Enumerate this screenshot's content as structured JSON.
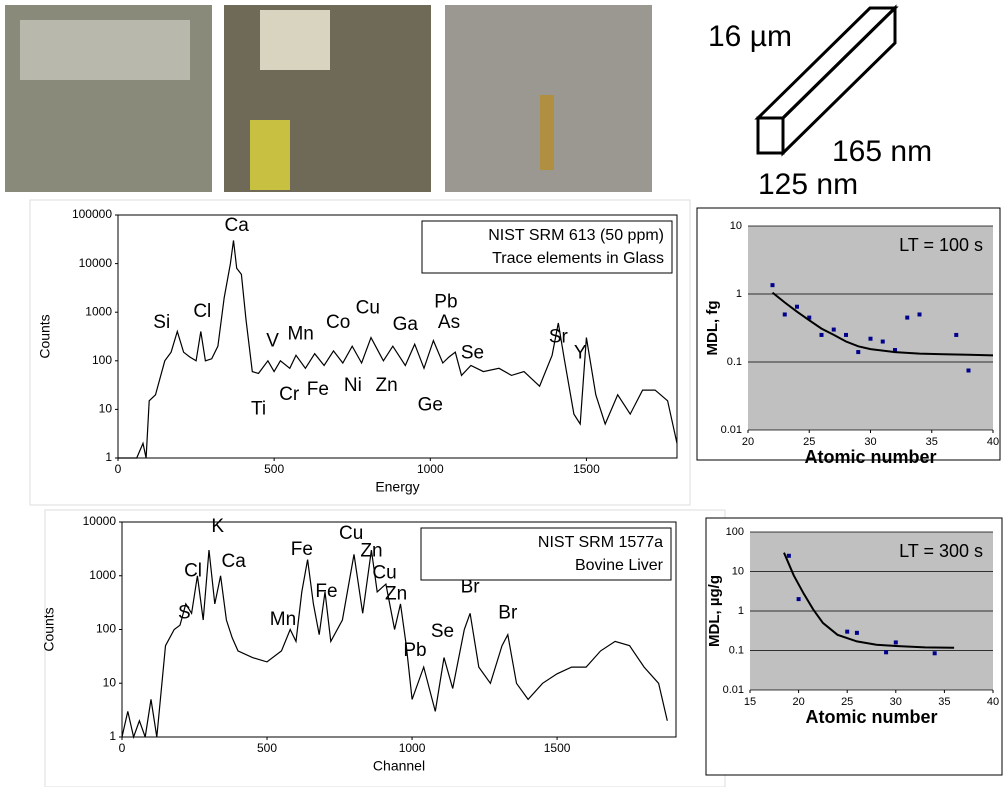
{
  "diagram": {
    "labels": [
      "16 µm",
      "165 nm",
      "125 nm"
    ]
  },
  "chart_data": [
    {
      "type": "line",
      "x_label": "Energy",
      "y_label": "Counts",
      "log_y": true,
      "notes": [
        "NIST SRM 613 (50 ppm)",
        "Trace elements in Glass"
      ],
      "xlim": [
        0,
        1790
      ],
      "xticks": [
        0,
        500,
        1000,
        1500
      ],
      "ylim": [
        1,
        100000
      ],
      "yticks": [
        1,
        10,
        100,
        1000,
        10000,
        100000
      ],
      "series": [
        {
          "color": "#000000",
          "x": [
            0,
            60,
            80,
            90,
            100,
            120,
            150,
            170,
            190,
            210,
            230,
            250,
            265,
            280,
            300,
            320,
            340,
            360,
            370,
            380,
            395,
            410,
            430,
            450,
            480,
            500,
            520,
            550,
            570,
            600,
            630,
            660,
            690,
            720,
            750,
            780,
            810,
            850,
            880,
            920,
            950,
            980,
            1010,
            1040,
            1060,
            1080,
            1100,
            1130,
            1170,
            1220,
            1260,
            1300,
            1350,
            1390,
            1410,
            1430,
            1460,
            1480,
            1500,
            1530,
            1560,
            1600,
            1640,
            1680,
            1720,
            1760,
            1790
          ],
          "values": [
            1,
            1,
            2,
            1,
            15,
            20,
            100,
            150,
            400,
            150,
            120,
            100,
            400,
            100,
            110,
            200,
            2000,
            10000,
            30000,
            8000,
            6000,
            700,
            60,
            55,
            100,
            60,
            100,
            70,
            130,
            70,
            140,
            80,
            160,
            90,
            200,
            90,
            300,
            100,
            200,
            80,
            220,
            70,
            260,
            90,
            120,
            150,
            50,
            80,
            60,
            70,
            50,
            60,
            30,
            130,
            600,
            100,
            8,
            5,
            300,
            20,
            5,
            20,
            8,
            25,
            25,
            15,
            2
          ]
        }
      ],
      "annotations": [
        {
          "text": "Ca",
          "x": 380,
          "y": 60000
        },
        {
          "text": "Si",
          "x": 140,
          "y": 600
        },
        {
          "text": "Cl",
          "x": 270,
          "y": 1000
        },
        {
          "text": "V",
          "x": 495,
          "y": 250
        },
        {
          "text": "Mn",
          "x": 585,
          "y": 350
        },
        {
          "text": "Co",
          "x": 705,
          "y": 600
        },
        {
          "text": "Cu",
          "x": 800,
          "y": 1200
        },
        {
          "text": "Ga",
          "x": 920,
          "y": 550
        },
        {
          "text": "Pb",
          "x": 1050,
          "y": 1600
        },
        {
          "text": "As",
          "x": 1060,
          "y": 600
        },
        {
          "text": "Se",
          "x": 1135,
          "y": 140
        },
        {
          "text": "Sr",
          "x": 1410,
          "y": 300
        },
        {
          "text": "Y",
          "x": 1480,
          "y": 140
        },
        {
          "text": "Ti",
          "x": 450,
          "y": 10
        },
        {
          "text": "Cr",
          "x": 548,
          "y": 20
        },
        {
          "text": "Fe",
          "x": 640,
          "y": 25
        },
        {
          "text": "Ni",
          "x": 752,
          "y": 30
        },
        {
          "text": "Zn",
          "x": 860,
          "y": 30
        },
        {
          "text": "Ge",
          "x": 1000,
          "y": 12
        }
      ]
    },
    {
      "type": "scatter",
      "x_label": "Atomic number",
      "y_label": "MDL, fg",
      "log_y": true,
      "grid": true,
      "notes": [
        "LT = 100 s"
      ],
      "xlim": [
        20,
        40
      ],
      "xticks": [
        20,
        25,
        30,
        35,
        40
      ],
      "ylim": [
        0.01,
        10
      ],
      "yticks": [
        0.01,
        0.1,
        1,
        10
      ],
      "series": [
        {
          "color": "#00008b",
          "marker": "point",
          "x": [
            22,
            23,
            24,
            25,
            26,
            27,
            28,
            29,
            30,
            31,
            32,
            33,
            34,
            37,
            38
          ],
          "values": [
            1.35,
            0.5,
            0.65,
            0.45,
            0.25,
            0.3,
            0.25,
            0.14,
            0.22,
            0.2,
            0.15,
            0.45,
            0.5,
            0.25,
            0.075
          ]
        },
        {
          "color": "#000000",
          "marker": "line",
          "x": [
            22,
            23,
            24,
            25,
            26,
            27,
            28,
            29,
            30,
            32,
            34,
            36,
            38,
            40
          ],
          "values": [
            1.05,
            0.75,
            0.55,
            0.41,
            0.31,
            0.25,
            0.2,
            0.17,
            0.155,
            0.14,
            0.133,
            0.13,
            0.128,
            0.125
          ]
        }
      ]
    },
    {
      "type": "line",
      "x_label": "Channel",
      "y_label": "Counts",
      "log_y": true,
      "notes": [
        "NIST SRM 1577a",
        "Bovine Liver"
      ],
      "xlim": [
        0,
        1910
      ],
      "xticks": [
        0,
        500,
        1000,
        1500
      ],
      "ylim": [
        1,
        10000
      ],
      "yticks": [
        1,
        10,
        100,
        1000,
        10000
      ],
      "series": [
        {
          "color": "#000000",
          "x": [
            0,
            20,
            40,
            60,
            80,
            100,
            120,
            150,
            180,
            200,
            220,
            240,
            260,
            280,
            300,
            320,
            340,
            360,
            380,
            400,
            450,
            500,
            550,
            580,
            600,
            620,
            640,
            660,
            680,
            700,
            720,
            760,
            800,
            830,
            860,
            880,
            910,
            940,
            960,
            980,
            1000,
            1040,
            1080,
            1110,
            1140,
            1180,
            1200,
            1230,
            1270,
            1310,
            1330,
            1360,
            1400,
            1450,
            1500,
            1550,
            1600,
            1650,
            1700,
            1750,
            1800,
            1850,
            1880
          ],
          "values": [
            1,
            3,
            1,
            2,
            1,
            5,
            1,
            50,
            100,
            120,
            300,
            200,
            1000,
            150,
            3000,
            300,
            1000,
            150,
            70,
            40,
            30,
            25,
            40,
            100,
            60,
            500,
            2000,
            300,
            80,
            500,
            60,
            150,
            2500,
            200,
            3000,
            500,
            700,
            100,
            300,
            50,
            5,
            20,
            3,
            30,
            8,
            100,
            200,
            20,
            10,
            50,
            80,
            10,
            5,
            10,
            15,
            20,
            20,
            40,
            60,
            50,
            20,
            10,
            2
          ]
        }
      ],
      "annotations": [
        {
          "text": "K",
          "x": 330,
          "y": 8000
        },
        {
          "text": "S",
          "x": 215,
          "y": 200
        },
        {
          "text": "Cl",
          "x": 245,
          "y": 1200
        },
        {
          "text": "Ca",
          "x": 385,
          "y": 1800
        },
        {
          "text": "Mn",
          "x": 555,
          "y": 150
        },
        {
          "text": "Fe",
          "x": 620,
          "y": 3000
        },
        {
          "text": "Fe",
          "x": 705,
          "y": 500
        },
        {
          "text": "Cu",
          "x": 790,
          "y": 6000
        },
        {
          "text": "Zn",
          "x": 860,
          "y": 2800
        },
        {
          "text": "Cu",
          "x": 905,
          "y": 1100
        },
        {
          "text": "Zn",
          "x": 945,
          "y": 450
        },
        {
          "text": "Pb",
          "x": 1010,
          "y": 40
        },
        {
          "text": "Se",
          "x": 1105,
          "y": 90
        },
        {
          "text": "Br",
          "x": 1200,
          "y": 600
        },
        {
          "text": "Br",
          "x": 1330,
          "y": 200
        }
      ]
    },
    {
      "type": "scatter",
      "x_label": "Atomic number",
      "y_label": "MDL, µg/g",
      "log_y": true,
      "grid": true,
      "notes": [
        "LT = 300 s"
      ],
      "xlim": [
        15,
        40
      ],
      "xticks": [
        15,
        20,
        25,
        30,
        35,
        40
      ],
      "ylim": [
        0.01,
        100
      ],
      "yticks": [
        0.01,
        0.1,
        1,
        10,
        100
      ],
      "series": [
        {
          "color": "#00008b",
          "marker": "point",
          "x": [
            19,
            20,
            25,
            26,
            29,
            30,
            34
          ],
          "values": [
            25,
            2,
            0.3,
            0.28,
            0.09,
            0.16,
            0.085
          ]
        },
        {
          "color": "#000000",
          "marker": "line",
          "x": [
            18.5,
            19.5,
            20.5,
            21.5,
            22.5,
            24,
            26,
            28,
            30,
            33,
            36
          ],
          "values": [
            30,
            8,
            2.8,
            1.1,
            0.5,
            0.25,
            0.17,
            0.14,
            0.13,
            0.12,
            0.118
          ]
        }
      ]
    }
  ]
}
